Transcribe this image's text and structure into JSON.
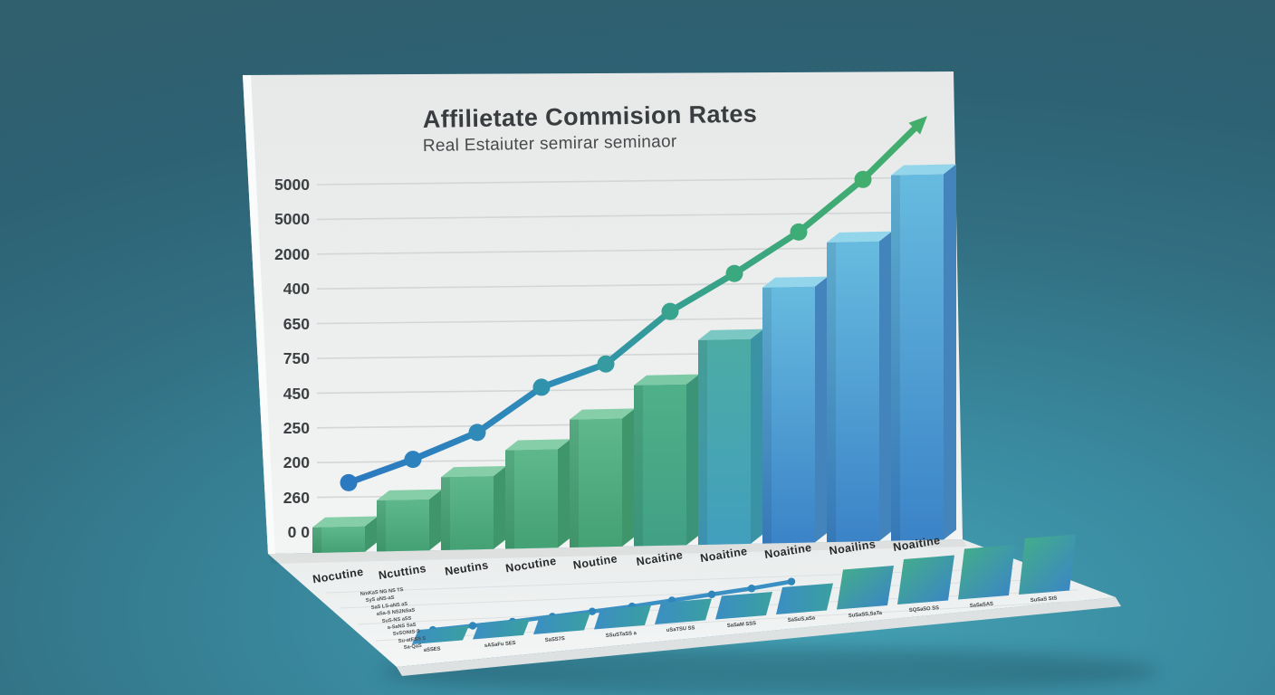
{
  "scene": {
    "background_color_top": "#305f6e",
    "background_color_bottom": "#3e93a7",
    "paper_color": "#edefef",
    "accent_green": "#44a173",
    "accent_blue": "#3b83c7",
    "line_blue": "#2b79c1",
    "line_green": "#43ae6b"
  },
  "chart_data": [
    {
      "type": "bar",
      "name": "main-3d-bar-chart",
      "title": "Affilietate Commision Rates",
      "subtitle": "Real Estaiuter semirar seminaor",
      "categories": [
        "Nocutine",
        "Ncuttins",
        "Neutins",
        "Nocutine",
        "Noutine",
        "Ncaitine",
        "Noaitine",
        "Noaitine",
        "Noailins",
        "Noaitine"
      ],
      "y_tick_labels": [
        "5000",
        "5000",
        "2000",
        "400",
        "650",
        "750",
        "450",
        "250",
        "200",
        "260",
        "0 0"
      ],
      "series": [
        {
          "name": "bars",
          "type": "bar",
          "values": [
            7,
            14,
            20,
            27,
            35,
            44,
            56,
            70,
            82,
            100
          ]
        },
        {
          "name": "trend-line-with-arrow",
          "type": "line",
          "values": [
            19,
            25,
            32,
            44,
            50,
            64,
            74,
            85,
            99,
            116
          ]
        }
      ],
      "units": "relative (axis tick text is garbled)",
      "ylim": [
        0,
        116
      ],
      "grid": "horizontal-lines",
      "legend": "none"
    },
    {
      "type": "bar",
      "name": "floor-mini-chart",
      "categories": [
        "aSSES",
        "sASaFu SES",
        "SaSS7S",
        "SSuSTaSS a",
        "uSaTSU SS",
        "SaSaM SSS",
        "SaSuS,aSa",
        "SuSaSS,SaTa",
        "SQSaSO SS",
        "SaSaSAS",
        "SuSaS StS"
      ],
      "left_axis_labels": [
        "NmKaS NG NS TS",
        "SyS aNS-aS",
        "SaS LS-aNS aS",
        "aSa-S NS2NSaS",
        "SuS-NS aSS",
        "a-SaNS SaS",
        "SvSONtS-S",
        "Su-atESS S",
        "Sa-QaS"
      ],
      "series": [
        {
          "name": "gradient-cells",
          "type": "bar",
          "values": [
            16,
            18,
            20,
            22,
            24,
            26,
            30,
            44,
            50,
            56,
            62
          ]
        },
        {
          "name": "mini-line",
          "type": "line",
          "values": [
            4,
            5,
            6,
            8,
            10,
            12,
            15,
            18,
            21,
            25
          ]
        }
      ],
      "units": "relative (labels are garbled)",
      "grid": "faint-horizontal-lines",
      "legend": "none"
    }
  ]
}
